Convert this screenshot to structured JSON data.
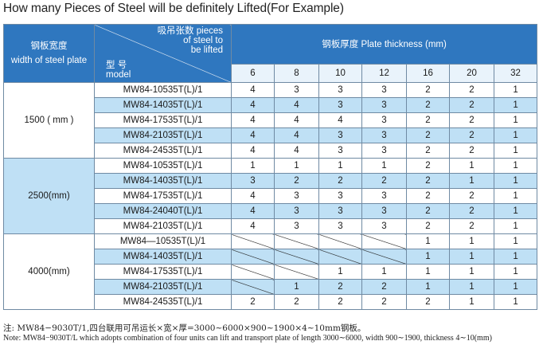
{
  "title": "How many Pieces of Steel will be definitely Lifted(For Example)",
  "header": {
    "width_cn": "钢板宽度",
    "width_en": "width of steel plate",
    "pieces_cn": "吸吊张数 pieces",
    "pieces_en_1": "of steel to",
    "pieces_en_2": "be lifted",
    "model_cn": "型 号",
    "model_en": "model",
    "thickness": "钢板厚度  Plate thickness  (mm)",
    "thickness_values": [
      "6",
      "8",
      "10",
      "12",
      "16",
      "20",
      "32"
    ]
  },
  "groups": [
    {
      "width": "1500 ( mm )",
      "rows": [
        {
          "model": "MW84-10535T(L)/1",
          "values": [
            "4",
            "3",
            "3",
            "3",
            "2",
            "2",
            "1"
          ]
        },
        {
          "model": "MW84-14035T(L)/1",
          "values": [
            "4",
            "4",
            "3",
            "3",
            "2",
            "2",
            "1"
          ]
        },
        {
          "model": "MW84-17535T(L)/1",
          "values": [
            "4",
            "4",
            "4",
            "3",
            "2",
            "2",
            "1"
          ]
        },
        {
          "model": "MW84-21035T(L)/1",
          "values": [
            "4",
            "4",
            "3",
            "3",
            "2",
            "2",
            "1"
          ]
        },
        {
          "model": "MW84-24535T(L)/1",
          "values": [
            "4",
            "4",
            "3",
            "3",
            "2",
            "2",
            "1"
          ]
        }
      ]
    },
    {
      "width": "2500(mm)",
      "rows": [
        {
          "model": "MW84-10535T(L)/1",
          "values": [
            "1",
            "1",
            "1",
            "1",
            "2",
            "1",
            "1"
          ]
        },
        {
          "model": "MW84-14035T(L)/1",
          "values": [
            "3",
            "2",
            "2",
            "2",
            "2",
            "1",
            "1"
          ]
        },
        {
          "model": "MW84-17535T(L)/1",
          "values": [
            "4",
            "3",
            "3",
            "3",
            "2",
            "2",
            "1"
          ]
        },
        {
          "model": "MW84-24040T(L)/1",
          "values": [
            "4",
            "3",
            "3",
            "3",
            "2",
            "2",
            "1"
          ]
        },
        {
          "model": "MW84-21035T(L)/1",
          "values": [
            "4",
            "3",
            "3",
            "3",
            "2",
            "2",
            "1"
          ]
        }
      ]
    },
    {
      "width": "4000(mm)",
      "rows": [
        {
          "model": "MW84—10535T(L)/1",
          "values": [
            "",
            "",
            "",
            "",
            "1",
            "1",
            "1"
          ]
        },
        {
          "model": "MW84-14035T(L)/1",
          "values": [
            "",
            "",
            "",
            "",
            "1",
            "1",
            "1"
          ]
        },
        {
          "model": "MW84-17535T(L)/1",
          "values": [
            "",
            "",
            "1",
            "1",
            "1",
            "1",
            "1"
          ]
        },
        {
          "model": "MW84-21035T(L)/1",
          "values": [
            "",
            "1",
            "2",
            "2",
            "1",
            "1",
            "1"
          ]
        },
        {
          "model": "MW84-24535T(L)/1",
          "values": [
            "2",
            "2",
            "2",
            "2",
            "2",
            "1",
            "1"
          ]
        }
      ]
    }
  ],
  "note_cn": "注: MW84−9030T/1,四台联用可吊运长×宽×厚=3000∼6000×900∼1900×4∼10mm钢板。",
  "note_en": "Note: MW84−9030T/L which adopts combination of four units can lift and transport plate of length 3000∼6000, width 900∼1900, thickness 4∼10(mm)"
}
